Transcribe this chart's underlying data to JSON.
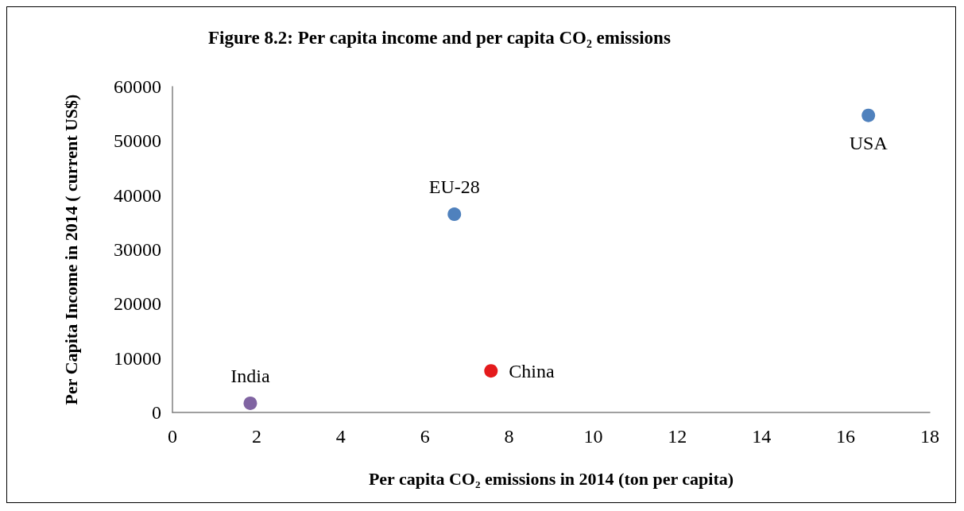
{
  "chart_data": {
    "type": "scatter",
    "title": "Figure 8.2: Per capita income and per capita CO₂ emissions",
    "xlabel": "Per capita CO₂ emissions in 2014 (ton per capita)",
    "ylabel": "Per Capita Income in 2014 ( current US$)",
    "series": [
      {
        "name": "India",
        "color": "#8064a2",
        "x": [
          1.85
        ],
        "values": [
          1700
        ]
      },
      {
        "name": "EU-28",
        "color": "#4f81bd",
        "x": [
          6.7
        ],
        "values": [
          36500
        ]
      },
      {
        "name": "China",
        "color": "#e41a1c",
        "x": [
          7.57
        ],
        "values": [
          7650
        ]
      },
      {
        "name": "USA",
        "color": "#4f81bd",
        "x": [
          16.54
        ],
        "values": [
          54700
        ]
      }
    ],
    "xlim": [
      0,
      18
    ],
    "xticks": [
      0,
      2,
      4,
      6,
      8,
      10,
      12,
      14,
      16,
      18
    ],
    "ylim": [
      0,
      60000
    ],
    "yticks": [
      0,
      10000,
      20000,
      30000,
      40000,
      50000,
      60000
    ],
    "grid": false,
    "legend": false,
    "marker": "circle"
  }
}
